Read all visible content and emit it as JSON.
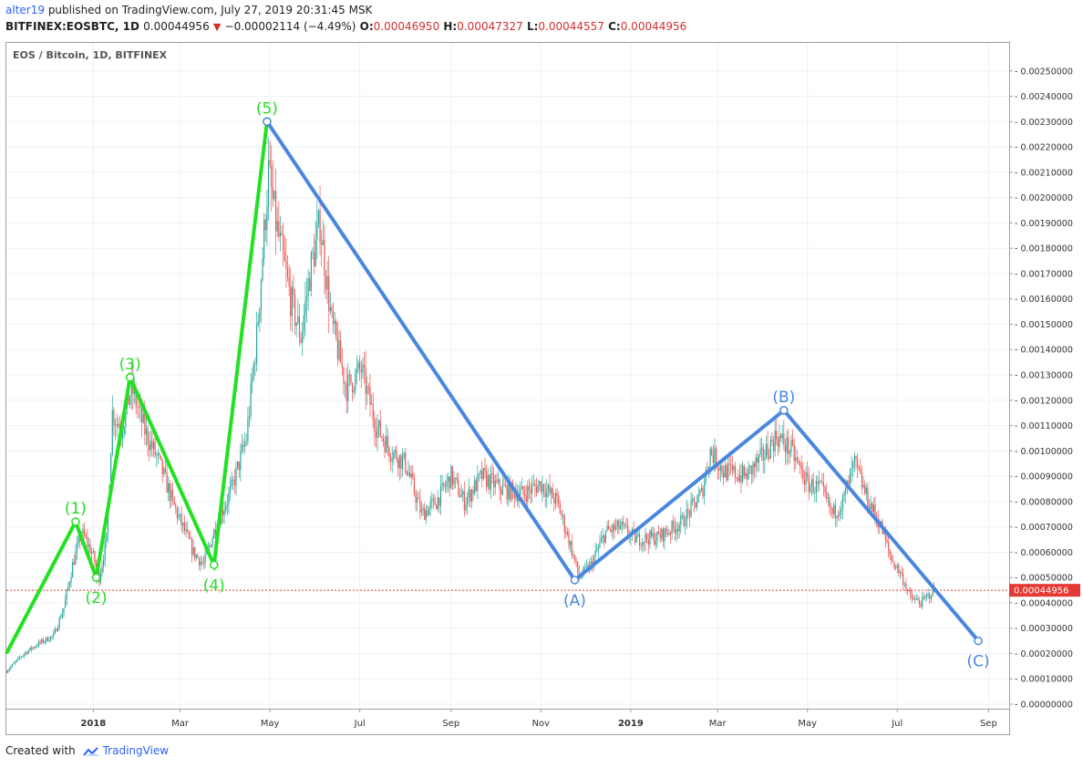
{
  "header": {
    "author": "alter19",
    "published": "published on TradingView.com, July 27, 2019 20:31:45 MSK",
    "symbol": "BITFINEX:EOSBTC, 1D",
    "price": "0.00044956",
    "change": "−0.00002114 (−4.49%)",
    "o_label": "O:",
    "o": "0.00046950",
    "h_label": "H:",
    "h": "0.00047327",
    "l_label": "L:",
    "l": "0.00044557",
    "c_label": "C:",
    "c": "0.00044956"
  },
  "footer": {
    "created": "Created with",
    "brand": "TradingView"
  },
  "chart_data": {
    "type": "line",
    "title": "EOS / Bitcoin, 1D, BITFINEX",
    "x_start": "2017-11-03",
    "x_end": "2019-09-15",
    "ylim": [
      0,
      0.0026
    ],
    "y_ticks": [
      "0.00250000",
      "0.00240000",
      "0.00230000",
      "0.00220000",
      "0.00210000",
      "0.00200000",
      "0.00190000",
      "0.00180000",
      "0.00170000",
      "0.00160000",
      "0.00150000",
      "0.00140000",
      "0.00130000",
      "0.00120000",
      "0.00110000",
      "0.00100000",
      "0.00090000",
      "0.00080000",
      "0.00070000",
      "0.00060000",
      "0.00050000",
      "0.00040000",
      "0.00030000",
      "0.00020000",
      "0.00010000",
      "0.00000000"
    ],
    "x_ticks": [
      {
        "date": "2018-01-01",
        "label": "2018",
        "bold": true
      },
      {
        "date": "2018-03-01",
        "label": "Mar",
        "bold": false
      },
      {
        "date": "2018-05-01",
        "label": "May",
        "bold": false
      },
      {
        "date": "2018-07-01",
        "label": "Jul",
        "bold": false
      },
      {
        "date": "2018-09-01",
        "label": "Sep",
        "bold": false
      },
      {
        "date": "2018-11-01",
        "label": "Nov",
        "bold": false
      },
      {
        "date": "2019-01-01",
        "label": "2019",
        "bold": true
      },
      {
        "date": "2019-03-01",
        "label": "Mar",
        "bold": false
      },
      {
        "date": "2019-05-01",
        "label": "May",
        "bold": false
      },
      {
        "date": "2019-07-01",
        "label": "Jul",
        "bold": false
      },
      {
        "date": "2019-09-01",
        "label": "Sep",
        "bold": false
      }
    ],
    "price_series": [
      {
        "date": "2017-11-03",
        "close": 0.00013
      },
      {
        "date": "2017-11-15",
        "close": 0.0002
      },
      {
        "date": "2017-11-25",
        "close": 0.00024
      },
      {
        "date": "2017-12-05",
        "close": 0.00027
      },
      {
        "date": "2017-12-12",
        "close": 0.00038
      },
      {
        "date": "2017-12-18",
        "close": 0.00055
      },
      {
        "date": "2017-12-24",
        "close": 0.00068
      },
      {
        "date": "2017-12-31",
        "close": 0.0006
      },
      {
        "date": "2018-01-05",
        "close": 0.0005
      },
      {
        "date": "2018-01-10",
        "close": 0.00065
      },
      {
        "date": "2018-01-14",
        "close": 0.00115
      },
      {
        "date": "2018-01-20",
        "close": 0.00108
      },
      {
        "date": "2018-01-27",
        "close": 0.00125
      },
      {
        "date": "2018-02-05",
        "close": 0.00108
      },
      {
        "date": "2018-02-15",
        "close": 0.00095
      },
      {
        "date": "2018-02-25",
        "close": 0.00078
      },
      {
        "date": "2018-03-10",
        "close": 0.0006
      },
      {
        "date": "2018-03-17",
        "close": 0.00055
      },
      {
        "date": "2018-03-25",
        "close": 0.0007
      },
      {
        "date": "2018-04-05",
        "close": 0.00085
      },
      {
        "date": "2018-04-15",
        "close": 0.00105
      },
      {
        "date": "2018-04-22",
        "close": 0.00145
      },
      {
        "date": "2018-04-30",
        "close": 0.0021
      },
      {
        "date": "2018-05-05",
        "close": 0.0019
      },
      {
        "date": "2018-05-15",
        "close": 0.0016
      },
      {
        "date": "2018-05-22",
        "close": 0.00145
      },
      {
        "date": "2018-05-28",
        "close": 0.0017
      },
      {
        "date": "2018-06-04",
        "close": 0.0019
      },
      {
        "date": "2018-06-12",
        "close": 0.0015
      },
      {
        "date": "2018-06-22",
        "close": 0.00125
      },
      {
        "date": "2018-07-02",
        "close": 0.00132
      },
      {
        "date": "2018-07-12",
        "close": 0.0011
      },
      {
        "date": "2018-07-22",
        "close": 0.001
      },
      {
        "date": "2018-08-01",
        "close": 0.00095
      },
      {
        "date": "2018-08-12",
        "close": 0.00075
      },
      {
        "date": "2018-08-22",
        "close": 0.0008
      },
      {
        "date": "2018-09-01",
        "close": 0.0009
      },
      {
        "date": "2018-09-10",
        "close": 0.0008
      },
      {
        "date": "2018-09-22",
        "close": 0.0009
      },
      {
        "date": "2018-10-05",
        "close": 0.00085
      },
      {
        "date": "2018-10-20",
        "close": 0.00083
      },
      {
        "date": "2018-11-01",
        "close": 0.00087
      },
      {
        "date": "2018-11-12",
        "close": 0.0008
      },
      {
        "date": "2018-11-20",
        "close": 0.00065
      },
      {
        "date": "2018-11-27",
        "close": 0.0005
      },
      {
        "date": "2018-12-05",
        "close": 0.00055
      },
      {
        "date": "2018-12-15",
        "close": 0.00068
      },
      {
        "date": "2018-12-25",
        "close": 0.0007
      },
      {
        "date": "2019-01-05",
        "close": 0.00065
      },
      {
        "date": "2019-01-20",
        "close": 0.00066
      },
      {
        "date": "2019-02-05",
        "close": 0.00072
      },
      {
        "date": "2019-02-18",
        "close": 0.00083
      },
      {
        "date": "2019-02-24",
        "close": 0.001
      },
      {
        "date": "2019-03-05",
        "close": 0.00092
      },
      {
        "date": "2019-03-20",
        "close": 0.0009
      },
      {
        "date": "2019-04-01",
        "close": 0.00098
      },
      {
        "date": "2019-04-10",
        "close": 0.00106
      },
      {
        "date": "2019-04-20",
        "close": 0.001
      },
      {
        "date": "2019-05-01",
        "close": 0.00087
      },
      {
        "date": "2019-05-10",
        "close": 0.00085
      },
      {
        "date": "2019-05-18",
        "close": 0.00075
      },
      {
        "date": "2019-05-25",
        "close": 0.0008
      },
      {
        "date": "2019-06-02",
        "close": 0.00095
      },
      {
        "date": "2019-06-10",
        "close": 0.00082
      },
      {
        "date": "2019-06-20",
        "close": 0.0007
      },
      {
        "date": "2019-06-27",
        "close": 0.00057
      },
      {
        "date": "2019-07-03",
        "close": 0.00052
      },
      {
        "date": "2019-07-10",
        "close": 0.00042
      },
      {
        "date": "2019-07-17",
        "close": 0.0004
      },
      {
        "date": "2019-07-26",
        "close": 0.00045
      }
    ],
    "impulse_wave": {
      "color": "#22e022",
      "points": [
        {
          "date": "2017-11-03",
          "price": 0.0002,
          "label": ""
        },
        {
          "date": "2017-12-20",
          "price": 0.00072,
          "label": "(1)"
        },
        {
          "date": "2018-01-03",
          "price": 0.0005,
          "label": "(2)"
        },
        {
          "date": "2018-01-26",
          "price": 0.00129,
          "label": "(3)"
        },
        {
          "date": "2018-03-24",
          "price": 0.00055,
          "label": "(4)"
        },
        {
          "date": "2018-04-29",
          "price": 0.0023,
          "label": "(5)"
        }
      ]
    },
    "corrective_wave": {
      "color": "#4a86e0",
      "points": [
        {
          "date": "2018-04-29",
          "price": 0.0023,
          "label": ""
        },
        {
          "date": "2018-11-24",
          "price": 0.00049,
          "label": "(A)"
        },
        {
          "date": "2019-04-15",
          "price": 0.00116,
          "label": "(B)"
        },
        {
          "date": "2019-08-25",
          "price": 0.00025,
          "label": "(C)"
        }
      ]
    },
    "last_price": 0.00044956,
    "last_price_label": "0.00044956",
    "up_color": "#26a69a",
    "down_color": "#ef5350",
    "grid": true
  }
}
